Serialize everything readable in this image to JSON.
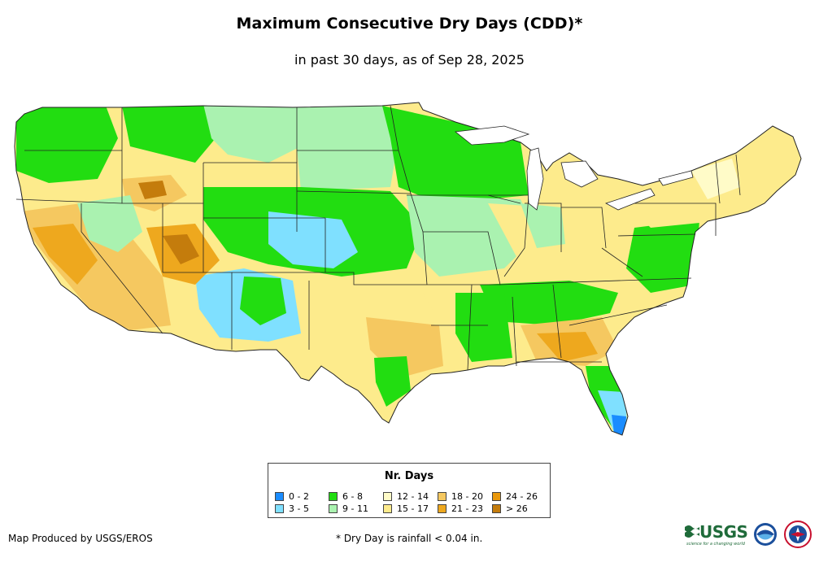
{
  "title": "Maximum Consecutive Dry Days (CDD)*",
  "subtitle": "in past 30 days, as of Sep 28, 2025",
  "legend": {
    "title": "Nr. Days",
    "items": [
      {
        "label": "0 - 2",
        "color": "#1a8cff"
      },
      {
        "label": "3 - 5",
        "color": "#7fe0ff"
      },
      {
        "label": "6 - 8",
        "color": "#22dd11"
      },
      {
        "label": "9 - 11",
        "color": "#aaf2b0"
      },
      {
        "label": "12 - 14",
        "color": "#fffbc8"
      },
      {
        "label": "15 - 17",
        "color": "#fdeb8c"
      },
      {
        "label": "18 - 20",
        "color": "#f5c860"
      },
      {
        "label": "21 - 23",
        "color": "#eea81e"
      },
      {
        "label": "24 - 26",
        "color": "#e9980c"
      },
      {
        "label": "> 26",
        "color": "#c47c0c"
      }
    ]
  },
  "footer": {
    "producer": "Map Produced by USGS/EROS",
    "note": "* Dry Day is rainfall < 0.04 in."
  },
  "logos": {
    "usgs": "USGS",
    "usgs_tagline": "science for a changing world",
    "noaa": "noaa-logo",
    "nws": "nws-logo"
  }
}
